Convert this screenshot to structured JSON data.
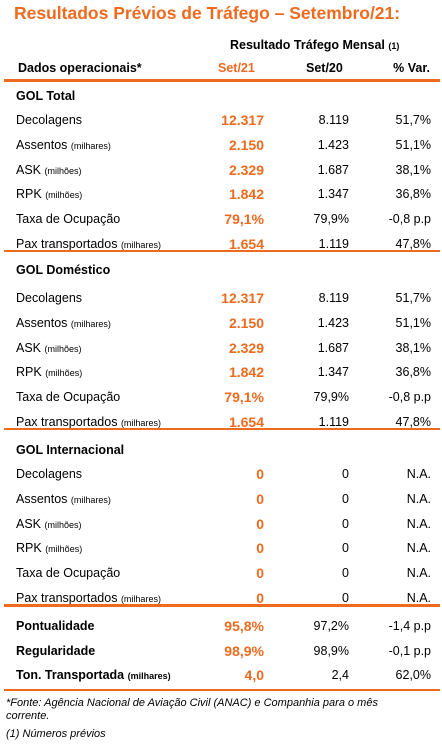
{
  "title": "Resultados Prévios de Tráfego – Setembro/21:",
  "table": {
    "group_header": "Resultado Tráfego Mensal",
    "group_header_ref": "(1)",
    "columns": [
      "Dados operacionais*",
      "Set/21",
      "Set/20",
      "% Var."
    ],
    "sections": [
      {
        "title": "GOL Total",
        "rows": [
          {
            "label": "Decolagens",
            "values": [
              "12.317",
              "8.119",
              "51,7%"
            ]
          },
          {
            "label": "Assentos",
            "unit": "(milhares)",
            "values": [
              "2.150",
              "1.423",
              "51,1%"
            ]
          },
          {
            "label": "ASK",
            "unit": "(milhões)",
            "values": [
              "2.329",
              "1.687",
              "38,1%"
            ]
          },
          {
            "label": "RPK",
            "unit": "(milhões)",
            "values": [
              "1.842",
              "1.347",
              "36,8%"
            ]
          },
          {
            "label": "Taxa de Ocupação",
            "values": [
              "79,1%",
              "79,9%",
              "-0,8 p.p"
            ]
          },
          {
            "label": "Pax transportados",
            "unit": "(milhares)",
            "values": [
              "1.654",
              "1.119",
              "47,8%"
            ]
          }
        ]
      },
      {
        "title": "GOL Doméstico",
        "rows": [
          {
            "label": "Decolagens",
            "values": [
              "12.317",
              "8.119",
              "51,7%"
            ]
          },
          {
            "label": "Assentos",
            "unit": "(milhares)",
            "values": [
              "2.150",
              "1.423",
              "51,1%"
            ]
          },
          {
            "label": "ASK",
            "unit": "(milhões)",
            "values": [
              "2.329",
              "1.687",
              "38,1%"
            ]
          },
          {
            "label": "RPK",
            "unit": "(milhões)",
            "values": [
              "1.842",
              "1.347",
              "36,8%"
            ]
          },
          {
            "label": "Taxa de Ocupação",
            "values": [
              "79,1%",
              "79,9%",
              "-0,8 p.p"
            ]
          },
          {
            "label": "Pax transportados",
            "unit": "(milhares)",
            "values": [
              "1.654",
              "1.119",
              "47,8%"
            ]
          }
        ]
      },
      {
        "title": "GOL Internacional",
        "rows": [
          {
            "label": "Decolagens",
            "values": [
              "0",
              "0",
              "N.A."
            ]
          },
          {
            "label": "Assentos",
            "unit": "(milhares)",
            "values": [
              "0",
              "0",
              "N.A."
            ]
          },
          {
            "label": "ASK",
            "unit": "(milhões)",
            "values": [
              "0",
              "0",
              "N.A."
            ]
          },
          {
            "label": "RPK",
            "unit": "(milhões)",
            "values": [
              "0",
              "0",
              "N.A."
            ]
          },
          {
            "label": "Taxa de Ocupação",
            "values": [
              "0",
              "0",
              "N.A."
            ]
          },
          {
            "label": "Pax transportados",
            "unit": "(milhares)",
            "values": [
              "0",
              "0",
              "N.A."
            ]
          }
        ]
      }
    ],
    "footer_rows": [
      {
        "label": "Pontualidade",
        "values": [
          "95,8%",
          "97,2%",
          "-1,4 p.p"
        ]
      },
      {
        "label": "Regularidade",
        "values": [
          "98,9%",
          "98,9%",
          "-0,1 p.p"
        ]
      },
      {
        "label": "Ton. Transportada",
        "unit": "(milhares)",
        "values": [
          "4,0",
          "2,4",
          "62,0%"
        ]
      }
    ]
  },
  "notes": [
    "*Fonte: Agência Nacional de Aviação Civil (ANAC) e Companhia para o mês corrente.",
    "(1) Números prévios"
  ]
}
